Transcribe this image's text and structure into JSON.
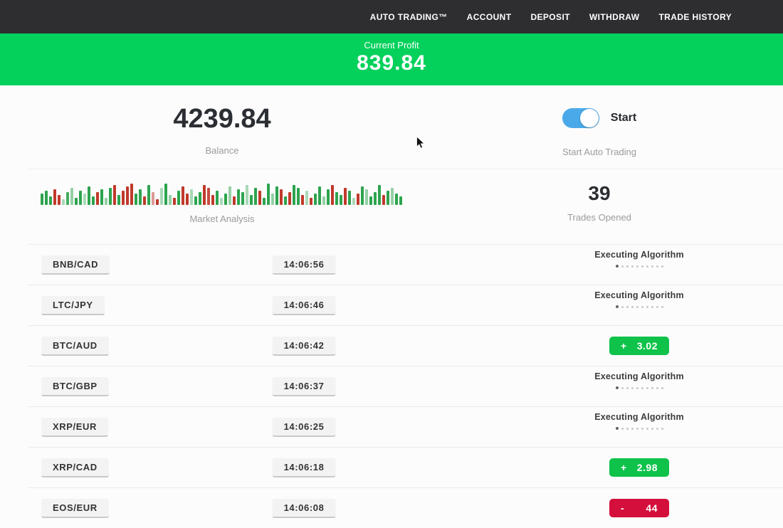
{
  "navbar": {
    "items": [
      {
        "label": "AUTO TRADING™"
      },
      {
        "label": "ACCOUNT"
      },
      {
        "label": "DEPOSIT"
      },
      {
        "label": "WITHDRAW"
      },
      {
        "label": "TRADE HISTORY"
      }
    ]
  },
  "profit_banner": {
    "label": "Current Profit",
    "value": "839.84"
  },
  "balance": {
    "value": "4239.84",
    "label": "Balance"
  },
  "auto_trading": {
    "toggle_label": "Start",
    "caption": "Start Auto Trading",
    "state": "on"
  },
  "market_analysis": {
    "label": "Market Analysis",
    "bars": [
      [
        16,
        "g",
        1
      ],
      [
        20,
        "g",
        1
      ],
      [
        12,
        "g",
        1
      ],
      [
        22,
        "r",
        1
      ],
      [
        14,
        "r",
        1
      ],
      [
        8,
        "g",
        0.4
      ],
      [
        18,
        "g",
        0.9
      ],
      [
        24,
        "g",
        0.5
      ],
      [
        10,
        "g",
        1
      ],
      [
        20,
        "g",
        1
      ],
      [
        16,
        "g",
        0.4
      ],
      [
        26,
        "g",
        1
      ],
      [
        12,
        "g",
        1
      ],
      [
        18,
        "r",
        1
      ],
      [
        22,
        "g",
        1
      ],
      [
        10,
        "g",
        0.5
      ],
      [
        24,
        "g",
        1
      ],
      [
        28,
        "r",
        1
      ],
      [
        14,
        "g",
        1
      ],
      [
        20,
        "r",
        1
      ],
      [
        26,
        "r",
        1
      ],
      [
        30,
        "r",
        1
      ],
      [
        16,
        "g",
        1
      ],
      [
        22,
        "g",
        1
      ],
      [
        12,
        "r",
        1
      ],
      [
        28,
        "g",
        1
      ],
      [
        18,
        "r",
        0.5
      ],
      [
        8,
        "r",
        1
      ],
      [
        24,
        "g",
        0.4
      ],
      [
        30,
        "g",
        1
      ],
      [
        14,
        "g",
        0.5
      ],
      [
        10,
        "r",
        1
      ],
      [
        20,
        "g",
        1
      ],
      [
        26,
        "r",
        1
      ],
      [
        16,
        "r",
        1
      ],
      [
        22,
        "g",
        0.4
      ],
      [
        12,
        "g",
        1
      ],
      [
        18,
        "g",
        1
      ],
      [
        28,
        "r",
        1
      ],
      [
        24,
        "r",
        0.9
      ],
      [
        14,
        "r",
        1
      ],
      [
        20,
        "g",
        1
      ],
      [
        10,
        "g",
        0.4
      ],
      [
        16,
        "g",
        1
      ],
      [
        26,
        "g",
        0.5
      ],
      [
        12,
        "r",
        1
      ],
      [
        22,
        "g",
        1
      ],
      [
        18,
        "g",
        1
      ],
      [
        28,
        "g",
        0.4
      ],
      [
        14,
        "g",
        1
      ],
      [
        24,
        "g",
        1
      ],
      [
        20,
        "r",
        1
      ],
      [
        10,
        "g",
        1
      ],
      [
        30,
        "g",
        1
      ],
      [
        16,
        "g",
        0.5
      ],
      [
        26,
        "g",
        1
      ],
      [
        22,
        "r",
        1
      ],
      [
        12,
        "g",
        1
      ],
      [
        18,
        "r",
        1
      ],
      [
        28,
        "g",
        1
      ],
      [
        24,
        "g",
        1
      ],
      [
        14,
        "r",
        1
      ],
      [
        20,
        "g",
        0.4
      ],
      [
        10,
        "r",
        1
      ],
      [
        16,
        "g",
        1
      ],
      [
        26,
        "g",
        1
      ],
      [
        12,
        "g",
        0.5
      ],
      [
        22,
        "g",
        1
      ],
      [
        28,
        "r",
        1
      ],
      [
        18,
        "g",
        1
      ],
      [
        14,
        "g",
        1
      ],
      [
        24,
        "r",
        1
      ],
      [
        20,
        "g",
        1
      ],
      [
        10,
        "g",
        0.4
      ],
      [
        16,
        "r",
        1
      ],
      [
        26,
        "g",
        1
      ],
      [
        22,
        "g",
        0.5
      ],
      [
        12,
        "g",
        1
      ],
      [
        18,
        "g",
        1
      ],
      [
        28,
        "g",
        1
      ],
      [
        14,
        "r",
        1
      ],
      [
        20,
        "g",
        1
      ],
      [
        24,
        "g",
        0.5
      ],
      [
        16,
        "g",
        1
      ],
      [
        12,
        "g",
        1
      ]
    ]
  },
  "trades_opened": {
    "value": "39",
    "label": "Trades Opened"
  },
  "loader": {
    "dot_count": 10
  },
  "trades": [
    {
      "pair": "BNB/CAD",
      "time": "14:06:56",
      "status": {
        "type": "executing",
        "label": "Executing Algorithm"
      }
    },
    {
      "pair": "LTC/JPY",
      "time": "14:06:46",
      "status": {
        "type": "executing",
        "label": "Executing Algorithm"
      }
    },
    {
      "pair": "BTC/AUD",
      "time": "14:06:42",
      "status": {
        "type": "profit",
        "sign": "+",
        "value": "3.02"
      }
    },
    {
      "pair": "BTC/GBP",
      "time": "14:06:37",
      "status": {
        "type": "executing",
        "label": "Executing Algorithm"
      }
    },
    {
      "pair": "XRP/EUR",
      "time": "14:06:25",
      "status": {
        "type": "executing",
        "label": "Executing Algorithm"
      }
    },
    {
      "pair": "XRP/CAD",
      "time": "14:06:18",
      "status": {
        "type": "profit",
        "sign": "+",
        "value": "2.98"
      }
    },
    {
      "pair": "EOS/EUR",
      "time": "14:06:08",
      "status": {
        "type": "loss",
        "sign": "-",
        "value": "44"
      }
    }
  ],
  "colors": {
    "navbar_bg": "#2e2e30",
    "banner_green": "#03d15c",
    "badge_green": "#0ec24a",
    "badge_red": "#d40f3c",
    "toggle_blue": "#4aa9e9",
    "bar_green": "#2da44e",
    "bar_red": "#c0392b"
  }
}
